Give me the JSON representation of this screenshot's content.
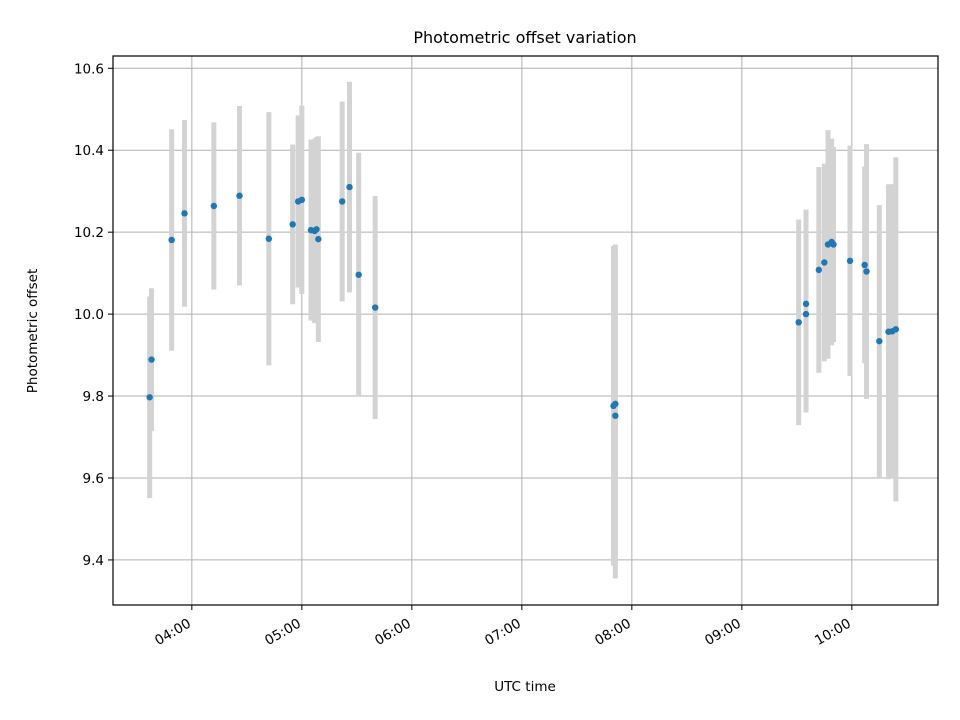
{
  "chart_data": {
    "type": "scatter",
    "title": "Photometric offset variation",
    "xlabel": "UTC time",
    "ylabel": "Photometric offset",
    "x_ticks": [
      "04:00",
      "05:00",
      "06:00",
      "07:00",
      "08:00",
      "09:00",
      "10:00"
    ],
    "y_ticks": [
      "9.4",
      "9.6",
      "9.8",
      "10.0",
      "10.2",
      "10.4",
      "10.6"
    ],
    "xlim": [
      "03:17",
      "10:47"
    ],
    "ylim": [
      9.29,
      10.63
    ],
    "grid": true,
    "colors": {
      "point": "#1f77b4",
      "errorbar": "#d3d3d3",
      "grid": "#b0b0b0"
    },
    "points": [
      {
        "t": "03:37",
        "y": 9.797,
        "err": 0.246
      },
      {
        "t": "03:38",
        "y": 9.889,
        "err": 0.174
      },
      {
        "t": "03:49",
        "y": 10.181,
        "err": 0.27
      },
      {
        "t": "03:56",
        "y": 10.246,
        "err": 0.228
      },
      {
        "t": "04:12",
        "y": 10.264,
        "err": 0.204
      },
      {
        "t": "04:26",
        "y": 10.289,
        "err": 0.219
      },
      {
        "t": "04:42",
        "y": 10.184,
        "err": 0.309
      },
      {
        "t": "04:55",
        "y": 10.219,
        "err": 0.195
      },
      {
        "t": "04:58",
        "y": 10.275,
        "err": 0.21
      },
      {
        "t": "05:00",
        "y": 10.279,
        "err": 0.23
      },
      {
        "t": "05:05",
        "y": 10.205,
        "err": 0.221
      },
      {
        "t": "05:07",
        "y": 10.203,
        "err": 0.225
      },
      {
        "t": "05:08",
        "y": 10.207,
        "err": 0.225
      },
      {
        "t": "05:09",
        "y": 10.183,
        "err": 0.251
      },
      {
        "t": "05:22",
        "y": 10.275,
        "err": 0.244
      },
      {
        "t": "05:26",
        "y": 10.31,
        "err": 0.257
      },
      {
        "t": "05:31",
        "y": 10.096,
        "err": 0.298
      },
      {
        "t": "05:40",
        "y": 10.016,
        "err": 0.272
      },
      {
        "t": "07:50",
        "y": 9.776,
        "err": 0.39
      },
      {
        "t": "07:51",
        "y": 9.752,
        "err": 0.397
      },
      {
        "t": "07:51",
        "y": 9.781,
        "err": 0.389
      },
      {
        "t": "09:31",
        "y": 9.98,
        "err": 0.251
      },
      {
        "t": "09:35",
        "y": 10.025,
        "err": 0.23
      },
      {
        "t": "09:35",
        "y": 10.0,
        "err": 0.24
      },
      {
        "t": "09:42",
        "y": 10.108,
        "err": 0.251
      },
      {
        "t": "09:45",
        "y": 10.126,
        "err": 0.241
      },
      {
        "t": "09:47",
        "y": 10.17,
        "err": 0.279
      },
      {
        "t": "09:49",
        "y": 10.176,
        "err": 0.252
      },
      {
        "t": "09:50",
        "y": 10.17,
        "err": 0.238
      },
      {
        "t": "09:59",
        "y": 10.13,
        "err": 0.281
      },
      {
        "t": "10:07",
        "y": 10.12,
        "err": 0.24
      },
      {
        "t": "10:08",
        "y": 10.104,
        "err": 0.311
      },
      {
        "t": "10:15",
        "y": 9.934,
        "err": 0.332
      },
      {
        "t": "10:20",
        "y": 9.957,
        "err": 0.36
      },
      {
        "t": "10:22",
        "y": 9.958,
        "err": 0.359
      },
      {
        "t": "10:24",
        "y": 9.963,
        "err": 0.42
      }
    ]
  }
}
